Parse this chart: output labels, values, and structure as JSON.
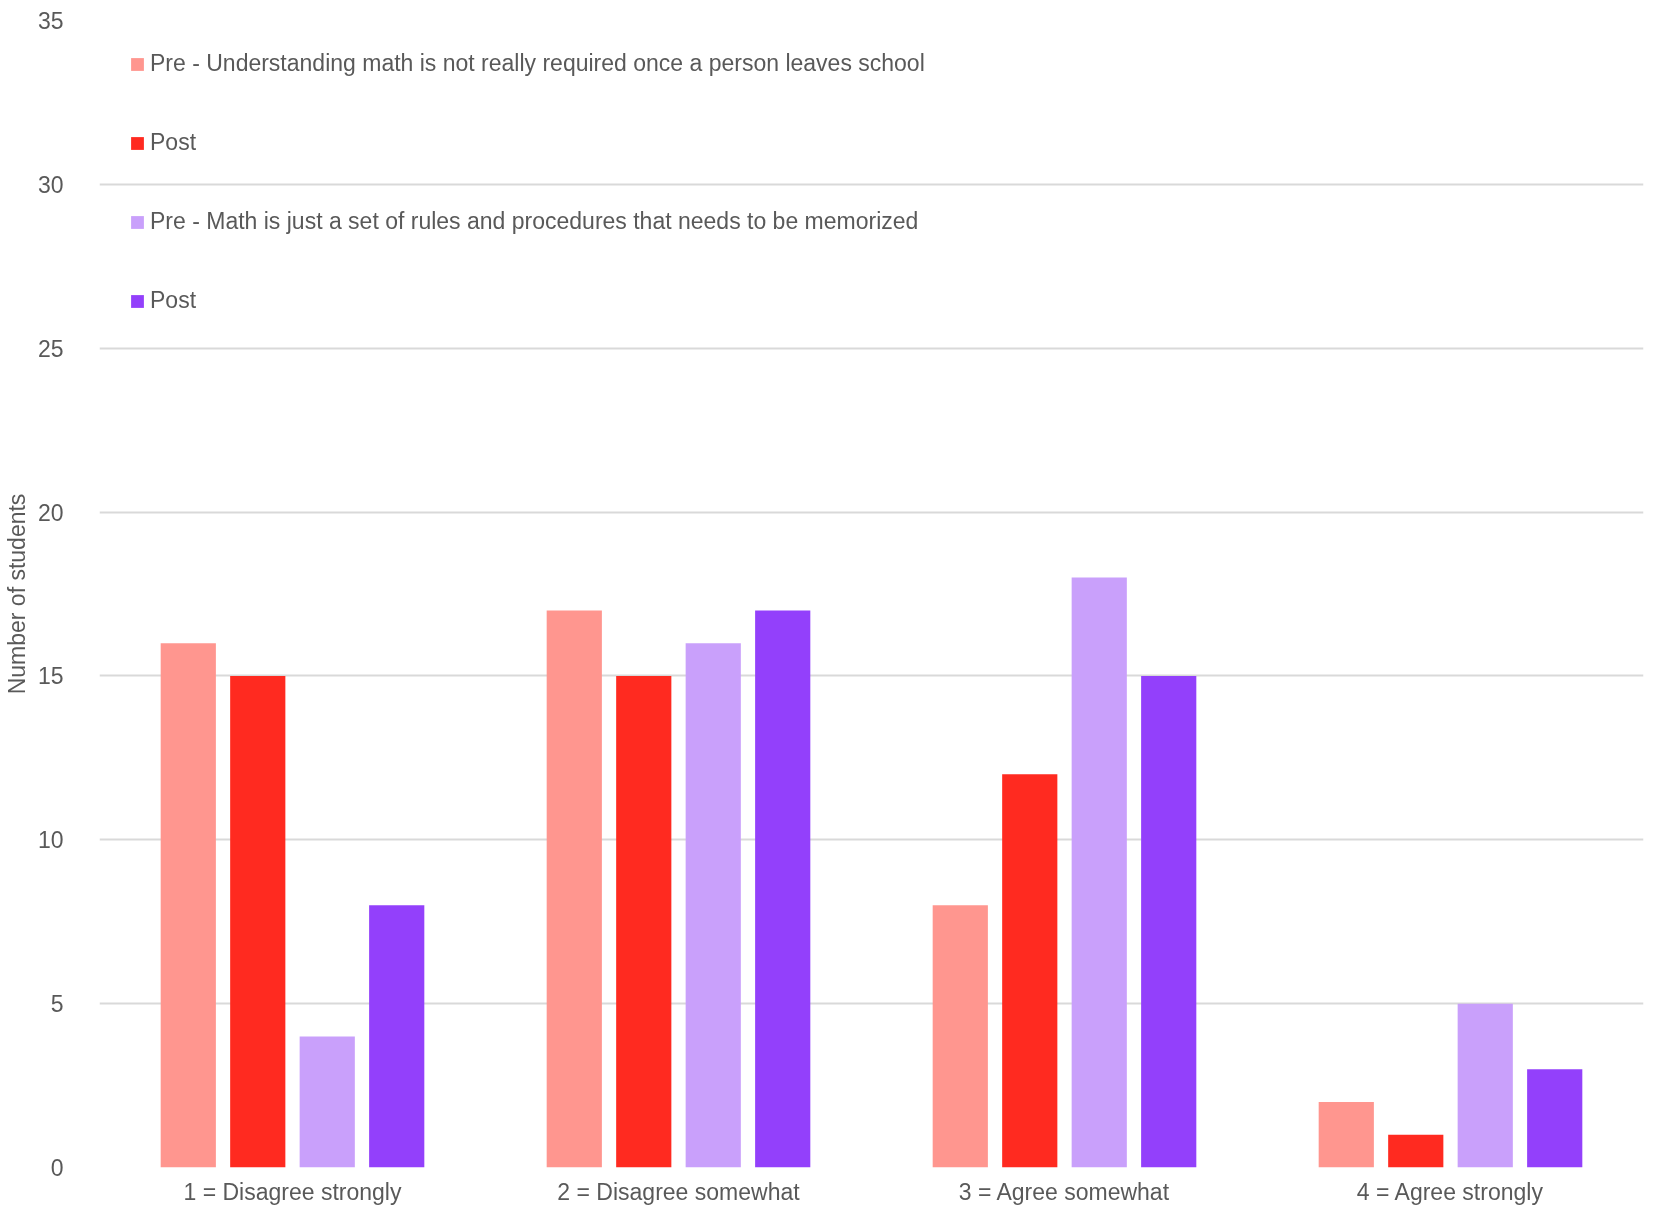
{
  "chart_data": {
    "type": "bar",
    "ylabel": "Number of students",
    "categories": [
      "1 = Disagree strongly",
      "2 = Disagree somewhat",
      "3 = Agree somewhat",
      "4 = Agree strongly"
    ],
    "series": [
      {
        "name": "Pre - Understanding math is not really required once a person leaves school",
        "color": "#ff968f",
        "values": [
          16,
          17,
          8,
          2
        ]
      },
      {
        "name": "Post",
        "color": "#ff2a20",
        "values": [
          15,
          15,
          12,
          1
        ]
      },
      {
        "name": "Pre - Math is just a set of rules and procedures that needs to be memorized",
        "color": "#c9a0fb",
        "values": [
          4,
          16,
          18,
          5
        ]
      },
      {
        "name": "Post",
        "color": "#9340fb",
        "values": [
          8,
          17,
          15,
          3
        ]
      }
    ],
    "ylim": [
      0,
      35
    ],
    "yticks": [
      0,
      5,
      10,
      15,
      20,
      25,
      30,
      35
    ],
    "grid": "y",
    "legend": "top left"
  }
}
